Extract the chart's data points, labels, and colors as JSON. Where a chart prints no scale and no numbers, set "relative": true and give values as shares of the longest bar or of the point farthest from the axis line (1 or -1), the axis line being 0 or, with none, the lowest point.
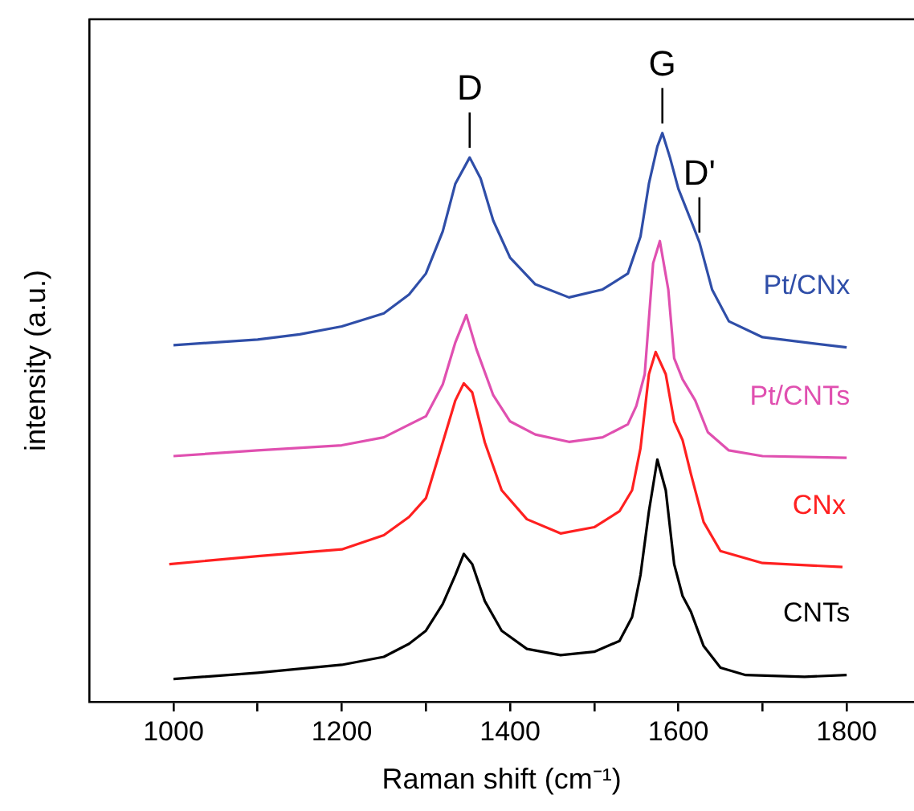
{
  "chart_data": {
    "type": "line",
    "xlabel": "Raman shift (cm⁻¹)",
    "ylabel": "intensity (a.u.)",
    "relative": true,
    "legend": false,
    "grid": false,
    "marker": "none",
    "line_style": "solid",
    "xlim": [
      900,
      1880
    ],
    "xticks": [
      1000,
      {
        "value": 1100,
        "label": null
      },
      1200,
      {
        "value": 1300,
        "label": null
      },
      1400,
      {
        "value": 1500,
        "label": null
      },
      1600,
      {
        "value": 1700,
        "label": null
      },
      1800
    ],
    "annotations": [
      {
        "text": "D",
        "x": 1352,
        "y": 0.957
      },
      {
        "text": "G",
        "x": 1581,
        "y": 1
      },
      {
        "text": "D'",
        "x": 1625,
        "y": 0.808
      }
    ],
    "series": [
      {
        "name": "CNTs",
        "color": "#000000",
        "x": [
          1000,
          1100,
          1200,
          1250,
          1280,
          1300,
          1320,
          1335,
          1345,
          1355,
          1370,
          1390,
          1420,
          1460,
          1500,
          1530,
          1545,
          1555,
          1565,
          1575,
          1585,
          1595,
          1605,
          1615,
          1630,
          1650,
          1680,
          1750,
          1800
        ],
        "values": [
          0.04,
          0.051,
          0.065,
          0.079,
          0.102,
          0.125,
          0.172,
          0.223,
          0.26,
          0.242,
          0.177,
          0.125,
          0.093,
          0.082,
          0.088,
          0.107,
          0.149,
          0.223,
          0.335,
          0.426,
          0.372,
          0.242,
          0.186,
          0.158,
          0.098,
          0.06,
          0.047,
          0.044,
          0.047
        ]
      },
      {
        "name": "CNx",
        "color": "#ff2020",
        "x": [
          995,
          1100,
          1200,
          1250,
          1280,
          1300,
          1320,
          1335,
          1345,
          1355,
          1370,
          1390,
          1420,
          1460,
          1500,
          1530,
          1545,
          1555,
          1565,
          1573,
          1585,
          1595,
          1605,
          1615,
          1630,
          1650,
          1700,
          1795
        ],
        "values": [
          0.242,
          0.256,
          0.268,
          0.293,
          0.325,
          0.358,
          0.456,
          0.53,
          0.56,
          0.544,
          0.456,
          0.372,
          0.321,
          0.296,
          0.307,
          0.335,
          0.372,
          0.446,
          0.576,
          0.615,
          0.576,
          0.493,
          0.46,
          0.4,
          0.316,
          0.265,
          0.244,
          0.237
        ]
      },
      {
        "name": "Pt/CNTs",
        "color": "#e050b0",
        "x": [
          1000,
          1100,
          1200,
          1250,
          1300,
          1320,
          1335,
          1348,
          1360,
          1380,
          1400,
          1430,
          1470,
          1510,
          1540,
          1550,
          1560,
          1570,
          1578,
          1588,
          1595,
          1605,
          1620,
          1635,
          1660,
          1700,
          1800
        ],
        "values": [
          0.432,
          0.442,
          0.451,
          0.465,
          0.502,
          0.558,
          0.632,
          0.68,
          0.62,
          0.539,
          0.493,
          0.47,
          0.457,
          0.465,
          0.488,
          0.52,
          0.576,
          0.771,
          0.81,
          0.725,
          0.604,
          0.567,
          0.53,
          0.474,
          0.442,
          0.432,
          0.429
        ]
      },
      {
        "name": "Pt/CNx",
        "color": "#2f4ea8",
        "x": [
          1000,
          1050,
          1100,
          1150,
          1200,
          1250,
          1280,
          1300,
          1320,
          1335,
          1352,
          1365,
          1380,
          1400,
          1430,
          1470,
          1510,
          1540,
          1555,
          1565,
          1575,
          1581,
          1590,
          1600,
          1615,
          1625,
          1640,
          1660,
          1700,
          1800
        ],
        "values": [
          0.627,
          0.632,
          0.637,
          0.646,
          0.66,
          0.683,
          0.716,
          0.753,
          0.827,
          0.911,
          0.957,
          0.92,
          0.846,
          0.781,
          0.734,
          0.711,
          0.725,
          0.753,
          0.818,
          0.911,
          0.976,
          1,
          0.957,
          0.902,
          0.846,
          0.808,
          0.725,
          0.669,
          0.641,
          0.623
        ]
      }
    ]
  }
}
